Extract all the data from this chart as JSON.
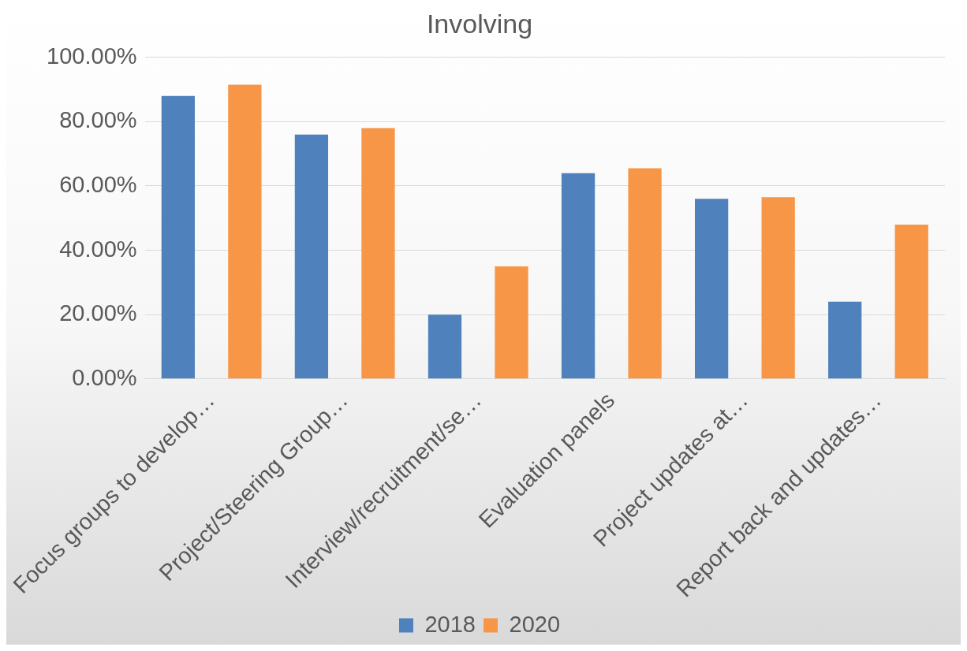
{
  "chart_data": {
    "type": "bar",
    "title": "Involving",
    "categories": [
      "Focus groups to develop…",
      "Project/Steering Group…",
      "Interview/recruitment/se…",
      "Evaluation panels",
      "Project updates at…",
      "Report back and updates…"
    ],
    "series": [
      {
        "name": "2018",
        "color": "#4f81bd",
        "values": [
          88,
          76,
          20,
          64,
          56,
          24
        ]
      },
      {
        "name": "2020",
        "color": "#f79646",
        "values": [
          91.5,
          78,
          35,
          65.5,
          56.5,
          48
        ]
      }
    ],
    "ylim": [
      0,
      100
    ],
    "yticks": [
      {
        "value": 0,
        "label": "0.00%"
      },
      {
        "value": 20,
        "label": "20.00%"
      },
      {
        "value": 40,
        "label": "40.00%"
      },
      {
        "value": 60,
        "label": "60.00%"
      },
      {
        "value": 80,
        "label": "80.00%"
      },
      {
        "value": 100,
        "label": "100.00%"
      }
    ],
    "grid": "y",
    "legend": "bottom"
  }
}
